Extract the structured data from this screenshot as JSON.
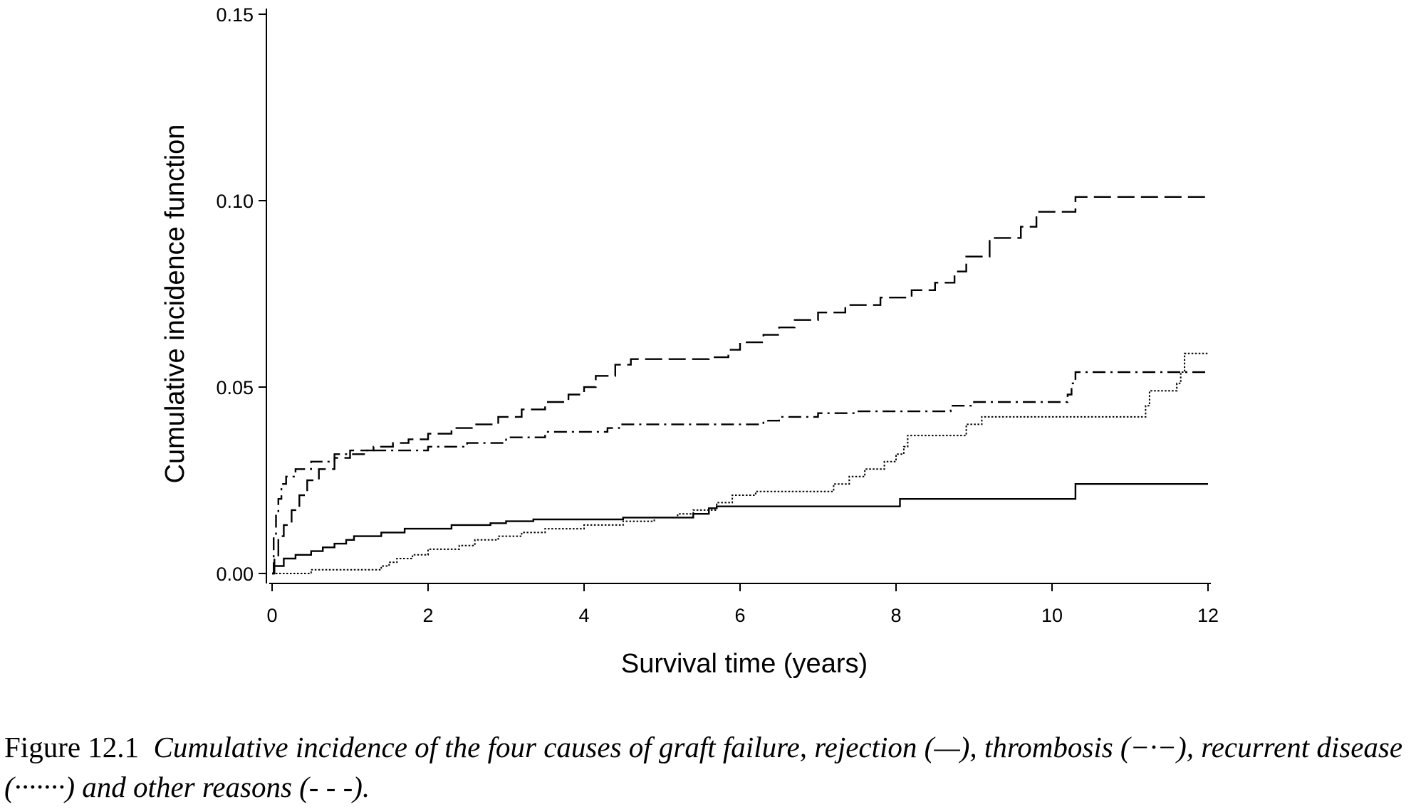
{
  "caption": {
    "label": "Figure 12.1",
    "text": "Cumulative incidence of the four causes of graft failure, rejection (—), thrombosis (−·−), recurrent disease (·······) and other reasons (- - -)."
  },
  "chart_data": {
    "type": "line",
    "xlabel": "Survival time (years)",
    "ylabel": "Cumulative incidence function",
    "xlim": [
      0,
      12
    ],
    "ylim": [
      0,
      0.15
    ],
    "xticks": [
      "0",
      "2",
      "4",
      "6",
      "8",
      "10",
      "12"
    ],
    "yticks": [
      "0.00",
      "0.05",
      "0.10",
      "0.15"
    ],
    "grid": false,
    "legend": "none",
    "series": [
      {
        "name": "rejection",
        "style": "solid",
        "color": "#000000",
        "points": [
          [
            0,
            0
          ],
          [
            0.02,
            0.002
          ],
          [
            0.15,
            0.004
          ],
          [
            0.3,
            0.005
          ],
          [
            0.5,
            0.006
          ],
          [
            0.65,
            0.007
          ],
          [
            0.8,
            0.008
          ],
          [
            0.95,
            0.009
          ],
          [
            1.05,
            0.01
          ],
          [
            1.4,
            0.011
          ],
          [
            1.7,
            0.012
          ],
          [
            2.3,
            0.013
          ],
          [
            2.8,
            0.0135
          ],
          [
            3.0,
            0.014
          ],
          [
            3.35,
            0.0145
          ],
          [
            4.5,
            0.015
          ],
          [
            5.4,
            0.016
          ],
          [
            5.6,
            0.0175
          ],
          [
            5.7,
            0.018
          ],
          [
            8.05,
            0.02
          ],
          [
            10.3,
            0.024
          ],
          [
            12.0,
            0.024
          ]
        ]
      },
      {
        "name": "thrombosis",
        "style": "dash-dot",
        "color": "#000000",
        "points": [
          [
            0,
            0
          ],
          [
            0.02,
            0.01
          ],
          [
            0.05,
            0.016
          ],
          [
            0.08,
            0.02
          ],
          [
            0.12,
            0.024
          ],
          [
            0.18,
            0.026
          ],
          [
            0.3,
            0.028
          ],
          [
            0.5,
            0.03
          ],
          [
            0.8,
            0.032
          ],
          [
            1.2,
            0.033
          ],
          [
            2.0,
            0.034
          ],
          [
            2.5,
            0.035
          ],
          [
            3.0,
            0.0365
          ],
          [
            3.5,
            0.038
          ],
          [
            4.3,
            0.039
          ],
          [
            4.45,
            0.04
          ],
          [
            6.3,
            0.041
          ],
          [
            6.5,
            0.042
          ],
          [
            7.0,
            0.043
          ],
          [
            7.5,
            0.0435
          ],
          [
            8.7,
            0.045
          ],
          [
            9.0,
            0.046
          ],
          [
            10.2,
            0.048
          ],
          [
            10.25,
            0.051
          ],
          [
            10.3,
            0.054
          ],
          [
            12.0,
            0.054
          ]
        ]
      },
      {
        "name": "recurrent disease",
        "style": "dotted",
        "color": "#000000",
        "points": [
          [
            0,
            0
          ],
          [
            0.5,
            0.001
          ],
          [
            1.4,
            0.002
          ],
          [
            1.5,
            0.003
          ],
          [
            1.6,
            0.004
          ],
          [
            1.8,
            0.005
          ],
          [
            2.0,
            0.0065
          ],
          [
            2.4,
            0.0075
          ],
          [
            2.6,
            0.009
          ],
          [
            2.9,
            0.01
          ],
          [
            3.2,
            0.011
          ],
          [
            3.5,
            0.012
          ],
          [
            4.0,
            0.013
          ],
          [
            4.5,
            0.014
          ],
          [
            4.9,
            0.015
          ],
          [
            5.2,
            0.016
          ],
          [
            5.4,
            0.017
          ],
          [
            5.7,
            0.019
          ],
          [
            5.9,
            0.021
          ],
          [
            6.2,
            0.022
          ],
          [
            7.0,
            0.022
          ],
          [
            7.2,
            0.024
          ],
          [
            7.4,
            0.026
          ],
          [
            7.6,
            0.028
          ],
          [
            7.85,
            0.03
          ],
          [
            8.0,
            0.032
          ],
          [
            8.1,
            0.034
          ],
          [
            8.15,
            0.037
          ],
          [
            8.9,
            0.04
          ],
          [
            9.1,
            0.042
          ],
          [
            11.2,
            0.045
          ],
          [
            11.25,
            0.049
          ],
          [
            11.6,
            0.051
          ],
          [
            11.65,
            0.054
          ],
          [
            11.7,
            0.059
          ],
          [
            12.0,
            0.059
          ]
        ]
      },
      {
        "name": "other reasons",
        "style": "dashed",
        "color": "#000000",
        "points": [
          [
            0,
            0
          ],
          [
            0.03,
            0.004
          ],
          [
            0.08,
            0.01
          ],
          [
            0.15,
            0.013
          ],
          [
            0.25,
            0.017
          ],
          [
            0.35,
            0.021
          ],
          [
            0.45,
            0.025
          ],
          [
            0.6,
            0.028
          ],
          [
            0.8,
            0.031
          ],
          [
            1.0,
            0.033
          ],
          [
            1.3,
            0.034
          ],
          [
            1.55,
            0.035
          ],
          [
            1.75,
            0.036
          ],
          [
            2.0,
            0.0375
          ],
          [
            2.3,
            0.039
          ],
          [
            2.6,
            0.04
          ],
          [
            2.9,
            0.042
          ],
          [
            3.2,
            0.044
          ],
          [
            3.5,
            0.046
          ],
          [
            3.8,
            0.048
          ],
          [
            4.0,
            0.05
          ],
          [
            4.15,
            0.053
          ],
          [
            4.4,
            0.056
          ],
          [
            4.6,
            0.0575
          ],
          [
            5.6,
            0.058
          ],
          [
            5.85,
            0.06
          ],
          [
            6.0,
            0.062
          ],
          [
            6.3,
            0.064
          ],
          [
            6.5,
            0.066
          ],
          [
            6.7,
            0.068
          ],
          [
            7.0,
            0.07
          ],
          [
            7.35,
            0.072
          ],
          [
            7.8,
            0.074
          ],
          [
            8.2,
            0.076
          ],
          [
            8.5,
            0.078
          ],
          [
            8.75,
            0.081
          ],
          [
            8.9,
            0.085
          ],
          [
            9.2,
            0.09
          ],
          [
            9.6,
            0.093
          ],
          [
            9.8,
            0.097
          ],
          [
            10.3,
            0.101
          ],
          [
            12.0,
            0.101
          ]
        ]
      }
    ]
  }
}
